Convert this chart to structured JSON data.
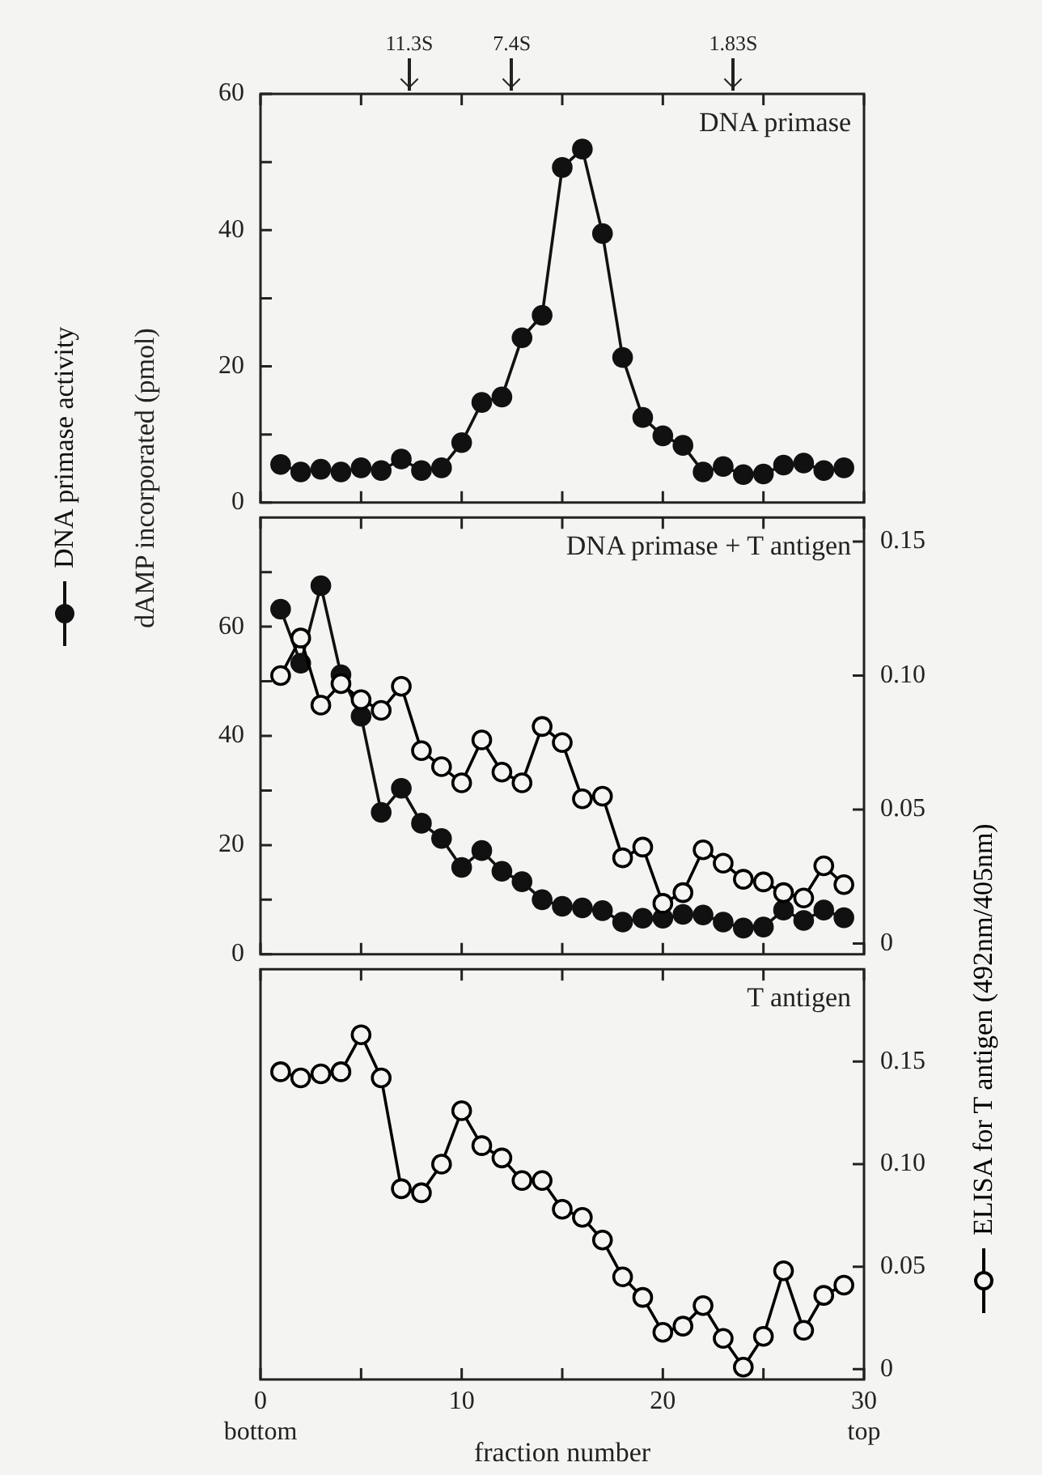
{
  "chart_data": [
    {
      "type": "line",
      "title": "DNA primase",
      "ylabel": "dAMP incorporated (pmol)",
      "legend": "left",
      "marker": "circle",
      "line_style": "solid",
      "grid": false,
      "tick_labels": "y",
      "x": [
        1,
        2,
        3,
        4,
        5,
        6,
        7,
        8,
        9,
        10,
        11,
        12,
        13,
        14,
        15,
        16,
        17,
        18,
        19,
        20,
        21,
        22,
        23,
        24,
        25,
        26,
        27,
        28,
        29
      ],
      "xlim": [
        0,
        30
      ],
      "xticks": [
        0,
        {
          "value": 5,
          "label": null
        },
        {
          "value": 10,
          "label": null
        },
        {
          "value": 15,
          "label": null
        },
        {
          "value": 20,
          "label": null
        },
        {
          "value": 25,
          "label": null
        },
        {
          "value": 30,
          "label": null
        }
      ],
      "ylim": [
        0,
        60
      ],
      "yticks": [
        0,
        {
          "value": 10,
          "label": null
        },
        20,
        {
          "value": 30,
          "label": null
        },
        40,
        {
          "value": 50,
          "label": null
        },
        60
      ],
      "ref_lines": [
        {
          "axis": "x",
          "value": 7.4,
          "label": "11.3S"
        },
        {
          "axis": "x",
          "value": 12.5,
          "label": "7.4S"
        },
        {
          "axis": "x",
          "value": 23.5,
          "label": "1.83S"
        }
      ],
      "series": [
        {
          "name": "DNA primase activity",
          "color": "#111111",
          "values": [
            5.6,
            4.5,
            4.9,
            4.5,
            5.1,
            4.7,
            6.4,
            4.7,
            5.1,
            8.8,
            14.7,
            15.5,
            24.2,
            27.5,
            49.2,
            51.9,
            39.5,
            21.3,
            12.5,
            9.8,
            8.4,
            4.5,
            5.3,
            4.1,
            4.2,
            5.5,
            5.8,
            4.7,
            5.1
          ]
        }
      ]
    },
    {
      "type": "line",
      "title": "DNA primase + T antigen",
      "marker": "circle",
      "line_style": "solid",
      "grid": false,
      "tick_labels": "y",
      "x": [
        1,
        2,
        3,
        4,
        5,
        6,
        7,
        8,
        9,
        10,
        11,
        12,
        13,
        14,
        15,
        16,
        17,
        18,
        19,
        20,
        21,
        22,
        23,
        24,
        25,
        26,
        27,
        28,
        29
      ],
      "xlim": [
        0,
        30
      ],
      "xticks": [
        {
          "value": 0,
          "label": null
        },
        {
          "value": 5,
          "label": null
        },
        {
          "value": 10,
          "label": null
        },
        {
          "value": 15,
          "label": null
        },
        {
          "value": 20,
          "label": null
        },
        {
          "value": 25,
          "label": null
        },
        {
          "value": 30,
          "label": null
        }
      ],
      "ylim": [
        0,
        80
      ],
      "yticks": [
        0,
        {
          "value": 10,
          "label": null
        },
        20,
        {
          "value": 30,
          "label": null
        },
        40,
        {
          "value": 50,
          "label": null
        },
        60,
        {
          "value": 70,
          "label": null
        }
      ],
      "y2lim": [
        -0.004,
        0.159
      ],
      "y2ticks": [
        0,
        0.05,
        {
          "value": 0.1,
          "label": "0.10"
        },
        0.15
      ],
      "series": [
        {
          "color": "#111111",
          "values": [
            63.2,
            53.3,
            67.5,
            51.2,
            43.6,
            26.0,
            30.4,
            24.0,
            21.2,
            15.9,
            19.0,
            15.2,
            13.3,
            10.0,
            8.8,
            8.5,
            8.0,
            5.9,
            6.6,
            6.6,
            7.3,
            7.2,
            5.9,
            4.8,
            5.0,
            8.1,
            6.2,
            8.1,
            6.7
          ]
        },
        {
          "color": "#000000",
          "axis": "y2",
          "values": [
            0.1,
            0.114,
            0.089,
            0.097,
            0.091,
            0.087,
            0.096,
            0.072,
            0.066,
            0.06,
            0.076,
            0.064,
            0.06,
            0.081,
            0.075,
            0.054,
            0.055,
            0.032,
            0.036,
            0.015,
            0.019,
            0.035,
            0.03,
            0.024,
            0.023,
            0.019,
            0.017,
            0.029,
            0.022
          ]
        }
      ]
    },
    {
      "type": "line",
      "title": "T antigen",
      "xlabel": "fraction number",
      "legend": "right",
      "marker": "circle",
      "line_style": "solid",
      "grid": false,
      "x": [
        1,
        2,
        3,
        4,
        5,
        6,
        7,
        8,
        9,
        10,
        11,
        12,
        13,
        14,
        15,
        16,
        17,
        18,
        19,
        20,
        21,
        22,
        23,
        24,
        25,
        26,
        27,
        28,
        29
      ],
      "xlim": [
        0,
        30
      ],
      "xticks": [
        {
          "value": 0,
          "label": "0\nbottom"
        },
        {
          "value": 5,
          "label": null
        },
        10,
        {
          "value": 15,
          "label": null
        },
        20,
        {
          "value": 25,
          "label": null
        },
        {
          "value": 30,
          "label": "30\ntop"
        }
      ],
      "y2lim": [
        -0.005,
        0.195
      ],
      "y2ticks": [
        0,
        0.05,
        {
          "value": 0.1,
          "label": "0.10"
        },
        0.15
      ],
      "series": [
        {
          "name": "ELISA for T antigen (492nm/405nm)",
          "color": "#000000",
          "axis": "y2",
          "values": [
            0.145,
            0.142,
            0.144,
            0.145,
            0.163,
            0.142,
            0.088,
            0.086,
            0.1,
            0.126,
            0.109,
            0.103,
            0.092,
            0.092,
            0.078,
            0.074,
            0.063,
            0.045,
            0.035,
            0.018,
            0.021,
            0.031,
            0.015,
            0.001,
            0.016,
            0.048,
            0.019,
            0.036,
            0.041
          ]
        }
      ]
    }
  ]
}
